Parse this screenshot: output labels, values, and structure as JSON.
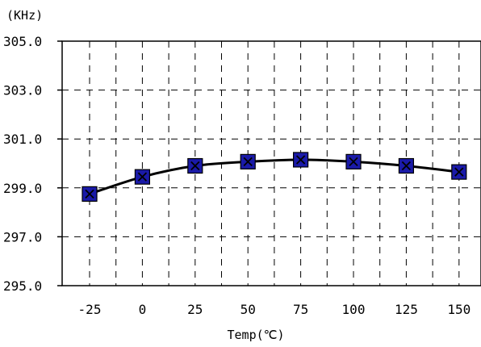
{
  "chart_data": {
    "type": "line",
    "title": "",
    "ylabel": "(KHz)",
    "xlabel": "Temp(℃)",
    "ylim": [
      295.0,
      305.0
    ],
    "ytick_labels": [
      "305.0",
      "303.0",
      "301.0",
      "299.0",
      "297.0",
      "295.0"
    ],
    "yticks": [
      305,
      303,
      301,
      299,
      297,
      295
    ],
    "x_tick_labels": [
      "-25",
      "0",
      "25",
      "50",
      "75",
      "100",
      "125",
      "150"
    ],
    "grid": true,
    "grid_style": "dashed",
    "legend": "none",
    "series": [
      {
        "x": [
          -25,
          0,
          25,
          50,
          75,
          100,
          125,
          150
        ],
        "values": [
          298.75,
          299.45,
          299.9,
          300.07,
          300.15,
          300.07,
          299.9,
          299.65
        ],
        "marker": "square-x",
        "marker_color": "#1a1aa8",
        "line_color": "#000000",
        "smooth": true
      }
    ]
  }
}
